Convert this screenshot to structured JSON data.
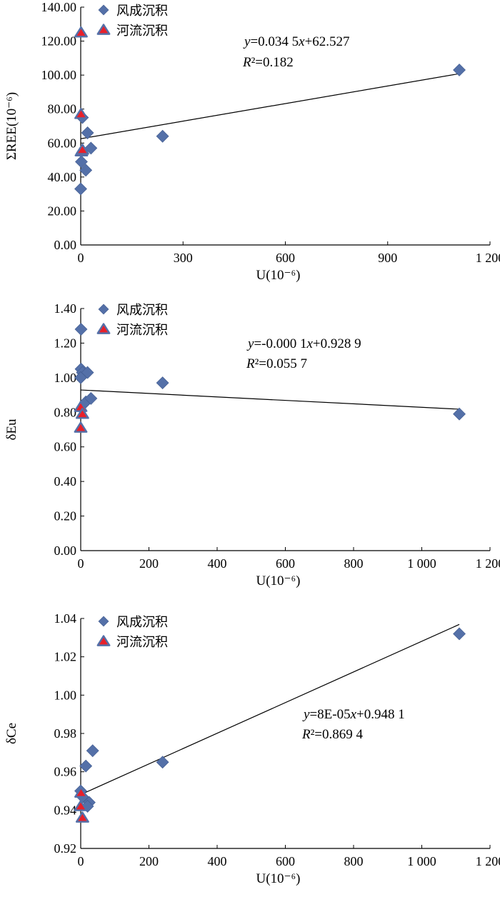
{
  "legend": {
    "series1": "风成沉积",
    "series2": "河流沉积"
  },
  "colors": {
    "series1": "#5470A8",
    "series2": "#E8202A",
    "series2_edge": "#5470A8",
    "trend": "#000000"
  },
  "chart_data": [
    {
      "type": "scatter",
      "ylabel": "ΣREE(10⁻⁶)",
      "xlabel": "U(10⁻⁶)",
      "xlim": [
        0,
        1200
      ],
      "ylim": [
        0,
        140
      ],
      "x_ticks": [
        0,
        300,
        600,
        900,
        1200
      ],
      "x_tick_labels": [
        "0",
        "300",
        "600",
        "900",
        "1 200"
      ],
      "y_ticks": [
        0,
        20,
        40,
        60,
        80,
        100,
        120,
        140
      ],
      "y_tick_labels": [
        "0.00",
        "20.00",
        "40.00",
        "60.00",
        "80.00",
        "100.00",
        "120.00",
        "140.00"
      ],
      "equation": {
        "prefix": "y",
        "mid": "=0.034 5",
        "var": "x",
        "suffix": "+62.527"
      },
      "r2": {
        "label": "R",
        "text": "²=0.182"
      },
      "trendline": {
        "slope": 0.0345,
        "intercept": 62.527,
        "x_range": [
          0,
          1110
        ]
      },
      "series": [
        {
          "name": "风成沉积",
          "marker": "diamond",
          "points": [
            [
              5,
              75
            ],
            [
              20,
              66
            ],
            [
              30,
              57
            ],
            [
              2,
              49
            ],
            [
              15,
              44
            ],
            [
              0,
              33
            ],
            [
              240,
              64
            ],
            [
              1110,
              103
            ]
          ]
        },
        {
          "name": "河流沉积",
          "marker": "triangle",
          "points": [
            [
              1,
              125
            ],
            [
              1,
              77
            ],
            [
              2,
              55
            ],
            [
              5,
              56
            ]
          ]
        }
      ]
    },
    {
      "type": "scatter",
      "ylabel": "δEu",
      "xlabel": "U(10⁻⁶)",
      "xlim": [
        0,
        1200
      ],
      "ylim": [
        0,
        1.4
      ],
      "x_ticks": [
        0,
        200,
        400,
        600,
        800,
        1000,
        1200
      ],
      "x_tick_labels": [
        "0",
        "200",
        "400",
        "600",
        "800",
        "1 000",
        "1 200"
      ],
      "y_ticks": [
        0,
        0.2,
        0.4,
        0.6,
        0.8,
        1.0,
        1.2,
        1.4
      ],
      "y_tick_labels": [
        "0.00",
        "0.20",
        "0.40",
        "0.60",
        "0.80",
        "1.00",
        "1.20",
        "1.40"
      ],
      "equation": {
        "prefix": "y",
        "mid": "=-0.000 1",
        "var": "x",
        "suffix": "+0.928 9"
      },
      "r2": {
        "label": "R",
        "text": "²=0.055 7"
      },
      "trendline": {
        "slope": -0.0001,
        "intercept": 0.9289,
        "x_range": [
          0,
          1110
        ]
      },
      "series": [
        {
          "name": "风成沉积",
          "marker": "diamond",
          "points": [
            [
              1,
              1.28
            ],
            [
              1,
              1.05
            ],
            [
              5,
              1.03
            ],
            [
              20,
              1.03
            ],
            [
              0,
              1.0
            ],
            [
              15,
              0.86
            ],
            [
              30,
              0.88
            ],
            [
              240,
              0.97
            ],
            [
              1110,
              0.79
            ]
          ]
        },
        {
          "name": "河流沉积",
          "marker": "triangle",
          "points": [
            [
              0,
              0.83
            ],
            [
              5,
              0.79
            ],
            [
              0,
              0.71
            ]
          ]
        }
      ]
    },
    {
      "type": "scatter",
      "ylabel": "δCe",
      "xlabel": "U(10⁻⁶)",
      "xlim": [
        0,
        1200
      ],
      "ylim": [
        0.92,
        1.04
      ],
      "x_ticks": [
        0,
        200,
        400,
        600,
        800,
        1000,
        1200
      ],
      "x_tick_labels": [
        "0",
        "200",
        "400",
        "600",
        "800",
        "1 000",
        "1 200"
      ],
      "y_ticks": [
        0.92,
        0.94,
        0.96,
        0.98,
        1.0,
        1.02,
        1.04
      ],
      "y_tick_labels": [
        "0.92",
        "0.94",
        "0.96",
        "0.98",
        "1.00",
        "1.02",
        "1.04"
      ],
      "equation": {
        "prefix": "y",
        "mid": "=8E-05",
        "var": "x",
        "suffix": "+0.948 1"
      },
      "r2": {
        "label": "R",
        "text": "²=0.869 4"
      },
      "trendline": {
        "slope": 8e-05,
        "intercept": 0.9481,
        "x_range": [
          0,
          1110
        ]
      },
      "series": [
        {
          "name": "风成沉积",
          "marker": "diamond",
          "points": [
            [
              35,
              0.971
            ],
            [
              15,
              0.963
            ],
            [
              0,
              0.95
            ],
            [
              5,
              0.947
            ],
            [
              25,
              0.944
            ],
            [
              20,
              0.942
            ],
            [
              240,
              0.965
            ],
            [
              1110,
              1.032
            ]
          ]
        },
        {
          "name": "河流沉积",
          "marker": "triangle",
          "points": [
            [
              1,
              0.949
            ],
            [
              0,
              0.942
            ],
            [
              5,
              0.936
            ]
          ]
        }
      ]
    }
  ]
}
